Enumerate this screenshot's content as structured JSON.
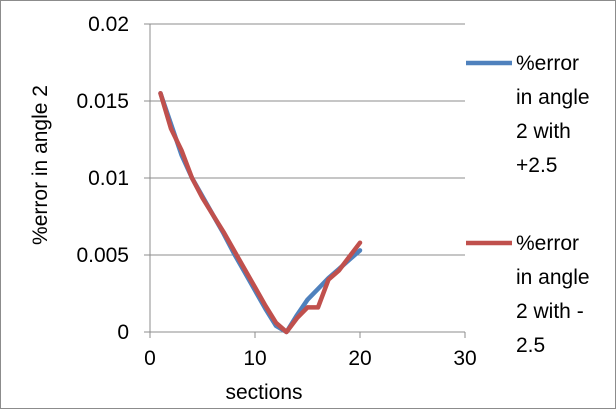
{
  "chart_data": {
    "type": "line",
    "title": "",
    "xlabel": "sections",
    "ylabel": "%error in angle 2",
    "xlim": [
      0,
      30
    ],
    "ylim": [
      0,
      0.02
    ],
    "x_ticks": [
      0,
      10,
      20,
      30
    ],
    "x_tick_labels": [
      "0",
      "10",
      "20",
      "30"
    ],
    "y_ticks": [
      0,
      0.005,
      0.01,
      0.015,
      0.02
    ],
    "y_tick_labels": [
      "0",
      "0.005",
      "0.01",
      "0.015",
      "0.02"
    ],
    "grid": "horizontal",
    "legend_position": "right",
    "x": [
      1,
      2,
      3,
      4,
      5,
      6,
      7,
      8,
      9,
      10,
      11,
      12,
      13,
      14,
      15,
      16,
      17,
      18,
      19,
      20
    ],
    "series": [
      {
        "name": "%error in angle 2 with +2.5",
        "legend_lines": [
          "%error",
          "in angle",
          "2 with",
          "+2.5"
        ],
        "color": "#4f81bd",
        "values": [
          0.0155,
          0.0135,
          0.0115,
          0.01,
          0.0088,
          0.0076,
          0.0064,
          0.0051,
          0.0039,
          0.0027,
          0.0015,
          0.0004,
          0.0,
          0.0011,
          0.0021,
          0.0028,
          0.0035,
          0.0041,
          0.0047,
          0.0053
        ]
      },
      {
        "name": "%error in angle 2 with -2.5",
        "legend_lines": [
          "%error",
          "in angle",
          "2 with -",
          "2.5"
        ],
        "color": "#c0504d",
        "values": [
          0.0155,
          0.0132,
          0.0118,
          0.01,
          0.0087,
          0.0076,
          0.0065,
          0.0053,
          0.0041,
          0.0029,
          0.0017,
          0.0006,
          0.0,
          0.0009,
          0.0016,
          0.0016,
          0.0034,
          0.004,
          0.0049,
          0.0058
        ]
      }
    ]
  }
}
